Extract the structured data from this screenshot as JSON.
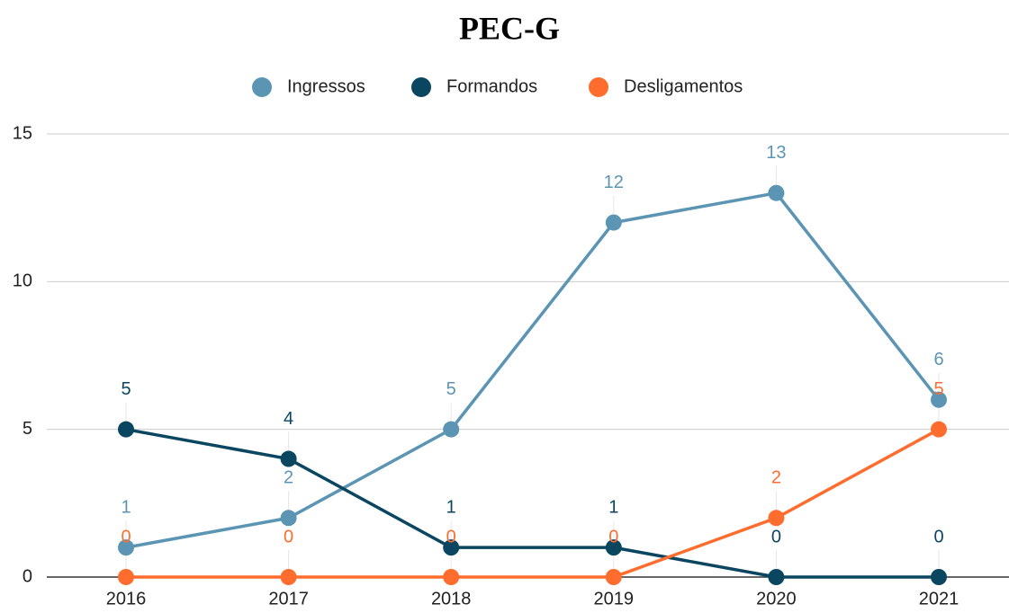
{
  "chart_data": {
    "type": "line",
    "title": "PEC-G",
    "categories": [
      "2016",
      "2017",
      "2018",
      "2019",
      "2020",
      "2021"
    ],
    "series": [
      {
        "name": "Ingressos",
        "color": "#5b95b3",
        "values": [
          1,
          2,
          5,
          12,
          13,
          6
        ]
      },
      {
        "name": "Formandos",
        "color": "#0b4661",
        "values": [
          5,
          4,
          1,
          1,
          0,
          0
        ]
      },
      {
        "name": "Desligamentos",
        "color": "#ff6d2e",
        "values": [
          0,
          0,
          0,
          0,
          2,
          5
        ]
      }
    ],
    "ylim": [
      0,
      15
    ],
    "yticks": [
      0,
      5,
      10,
      15
    ],
    "grid": true,
    "legend": "top"
  }
}
